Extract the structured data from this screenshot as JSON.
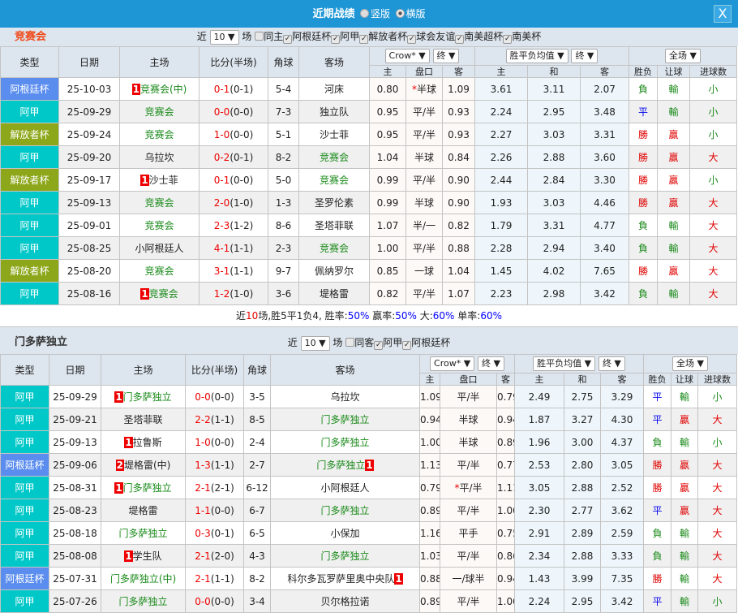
{
  "window": {
    "title": "近期战绩",
    "view_vertical": "竖版",
    "view_horizontal": "横版",
    "close": "X"
  },
  "colors": {
    "阿根廷杯": "#5b8def",
    "阿甲": "#00c8c8",
    "解放者杯": "#8ca81a",
    "win": "#e00000",
    "draw": "#0000ee",
    "loss": "#1a8a1a",
    "title_bar": "#1e96d6"
  },
  "labels": {
    "recent": "近",
    "games": "场",
    "h_type": "类型",
    "h_date": "日期",
    "h_home": "主场",
    "h_score": "比分(半场)",
    "h_corner": "角球",
    "h_away": "客场",
    "h_main": "主",
    "h_line": "盘口",
    "h_away_odds": "客",
    "h_draw": "和",
    "h_wl": "胜负",
    "h_ah": "让球",
    "h_ou": "进球数",
    "company": "Crow*",
    "final": "终",
    "euro": "胜平负均值",
    "period": "全场"
  },
  "team1": {
    "name": "竞赛会",
    "count": "10",
    "same": "同主",
    "filters": [
      "阿根廷杯",
      "阿甲",
      "解放者杯",
      "球会友谊",
      "南美超杯",
      "南美杯"
    ],
    "summary": {
      "p1": "近",
      "n": "10",
      "p2": "场,胜5平1负4, 胜率:",
      "win": "50%",
      "p3": " 赢率:",
      "ah": "50%",
      "p4": " 大:",
      "big": "60%",
      "p5": " 单率:",
      "odd": "60%"
    },
    "rows": [
      {
        "type": "阿根廷杯",
        "date": "25-10-03",
        "home": {
          "name": "竞赛会(中)",
          "hl": true,
          "card": "1"
        },
        "score": "0-1",
        "ht": "(0-1)",
        "corner": "5-4",
        "away": {
          "name": "河床"
        },
        "o": [
          "0.80",
          "半球",
          "1.09"
        ],
        "star": true,
        "e": [
          "3.61",
          "3.11",
          "2.07"
        ],
        "wl": "負",
        "ah": "輸",
        "ou": "小"
      },
      {
        "type": "阿甲",
        "date": "25-09-29",
        "home": {
          "name": "竞赛会",
          "hl": true
        },
        "score": "0-0",
        "ht": "(0-0)",
        "corner": "7-3",
        "away": {
          "name": "独立队"
        },
        "o": [
          "0.95",
          "平/半",
          "0.93"
        ],
        "e": [
          "2.24",
          "2.95",
          "3.48"
        ],
        "wl": "平",
        "ah": "輸",
        "ou": "小"
      },
      {
        "type": "解放者杯",
        "date": "25-09-24",
        "home": {
          "name": "竞赛会",
          "hl": true
        },
        "score": "1-0",
        "ht": "(0-0)",
        "corner": "5-1",
        "away": {
          "name": "沙士菲"
        },
        "o": [
          "0.95",
          "平/半",
          "0.93"
        ],
        "e": [
          "2.27",
          "3.03",
          "3.31"
        ],
        "wl": "勝",
        "ah": "贏",
        "ou": "小"
      },
      {
        "type": "阿甲",
        "date": "25-09-20",
        "home": {
          "name": "乌拉坎"
        },
        "score": "0-2",
        "ht": "(0-1)",
        "corner": "8-2",
        "away": {
          "name": "竞赛会",
          "hl": true
        },
        "o": [
          "1.04",
          "半球",
          "0.84"
        ],
        "e": [
          "2.26",
          "2.88",
          "3.60"
        ],
        "wl": "勝",
        "ah": "贏",
        "ou": "大"
      },
      {
        "type": "解放者杯",
        "date": "25-09-17",
        "home": {
          "name": "沙士菲",
          "card": "1"
        },
        "score": "0-1",
        "ht": "(0-0)",
        "corner": "5-0",
        "away": {
          "name": "竞赛会",
          "hl": true
        },
        "o": [
          "0.99",
          "平/半",
          "0.90"
        ],
        "e": [
          "2.44",
          "2.84",
          "3.30"
        ],
        "wl": "勝",
        "ah": "贏",
        "ou": "小"
      },
      {
        "type": "阿甲",
        "date": "25-09-13",
        "home": {
          "name": "竞赛会",
          "hl": true
        },
        "score": "2-0",
        "ht": "(1-0)",
        "corner": "1-3",
        "away": {
          "name": "圣罗伦素"
        },
        "o": [
          "0.99",
          "半球",
          "0.90"
        ],
        "e": [
          "1.93",
          "3.03",
          "4.46"
        ],
        "wl": "勝",
        "ah": "贏",
        "ou": "大"
      },
      {
        "type": "阿甲",
        "date": "25-09-01",
        "home": {
          "name": "竞赛会",
          "hl": true
        },
        "score": "2-3",
        "ht": "(1-2)",
        "corner": "8-6",
        "away": {
          "name": "圣塔菲联"
        },
        "o": [
          "1.07",
          "半/一",
          "0.82"
        ],
        "e": [
          "1.79",
          "3.31",
          "4.77"
        ],
        "wl": "負",
        "ah": "輸",
        "ou": "大"
      },
      {
        "type": "阿甲",
        "date": "25-08-25",
        "home": {
          "name": "小阿根廷人"
        },
        "score": "4-1",
        "ht": "(1-1)",
        "corner": "2-3",
        "away": {
          "name": "竞赛会",
          "hl": true
        },
        "o": [
          "1.00",
          "平/半",
          "0.88"
        ],
        "e": [
          "2.28",
          "2.94",
          "3.40"
        ],
        "wl": "負",
        "ah": "輸",
        "ou": "大"
      },
      {
        "type": "解放者杯",
        "date": "25-08-20",
        "home": {
          "name": "竞赛会",
          "hl": true
        },
        "score": "3-1",
        "ht": "(1-1)",
        "corner": "9-7",
        "away": {
          "name": "佩纳罗尔"
        },
        "o": [
          "0.85",
          "一球",
          "1.04"
        ],
        "e": [
          "1.45",
          "4.02",
          "7.65"
        ],
        "wl": "勝",
        "ah": "贏",
        "ou": "大"
      },
      {
        "type": "阿甲",
        "date": "25-08-16",
        "home": {
          "name": "竞赛会",
          "hl": true,
          "card": "1"
        },
        "score": "1-2",
        "ht": "(1-0)",
        "corner": "3-6",
        "away": {
          "name": "堤格雷"
        },
        "o": [
          "0.82",
          "平/半",
          "1.07"
        ],
        "e": [
          "2.23",
          "2.98",
          "3.42"
        ],
        "wl": "負",
        "ah": "輸",
        "ou": "大"
      }
    ]
  },
  "team2": {
    "name": "门多萨独立",
    "count": "10",
    "same": "同客",
    "filters": [
      "阿甲",
      "阿根廷杯"
    ],
    "rows": [
      {
        "type": "阿甲",
        "date": "25-09-29",
        "home": {
          "name": "门多萨独立",
          "hl": true,
          "card": "1"
        },
        "score": "0-0",
        "ht": "(0-0)",
        "corner": "3-5",
        "away": {
          "name": "乌拉坎"
        },
        "o": [
          "1.09",
          "平/半",
          "0.79"
        ],
        "e": [
          "2.49",
          "2.75",
          "3.29"
        ],
        "wl": "平",
        "ah": "輸",
        "ou": "小"
      },
      {
        "type": "阿甲",
        "date": "25-09-21",
        "home": {
          "name": "圣塔菲联"
        },
        "score": "2-2",
        "ht": "(1-1)",
        "corner": "8-5",
        "away": {
          "name": "门多萨独立",
          "hl": true
        },
        "o": [
          "0.94",
          "半球",
          "0.94"
        ],
        "e": [
          "1.87",
          "3.27",
          "4.30"
        ],
        "wl": "平",
        "ah": "贏",
        "ou": "大"
      },
      {
        "type": "阿甲",
        "date": "25-09-13",
        "home": {
          "name": "拉鲁斯",
          "card": "1"
        },
        "score": "1-0",
        "ht": "(0-0)",
        "corner": "2-4",
        "away": {
          "name": "门多萨独立",
          "hl": true
        },
        "o": [
          "1.00",
          "半球",
          "0.89"
        ],
        "e": [
          "1.96",
          "3.00",
          "4.37"
        ],
        "wl": "負",
        "ah": "輸",
        "ou": "小"
      },
      {
        "type": "阿根廷杯",
        "date": "25-09-06",
        "home": {
          "name": "堤格雷(中)",
          "card": "2"
        },
        "score": "1-3",
        "ht": "(1-1)",
        "corner": "2-7",
        "away": {
          "name": "门多萨独立",
          "hl": true,
          "card_after": "1"
        },
        "o": [
          "1.13",
          "平/半",
          "0.77"
        ],
        "e": [
          "2.53",
          "2.80",
          "3.05"
        ],
        "wl": "勝",
        "ah": "贏",
        "ou": "大"
      },
      {
        "type": "阿甲",
        "date": "25-08-31",
        "home": {
          "name": "门多萨独立",
          "hl": true,
          "card": "1"
        },
        "score": "2-1",
        "ht": "(2-1)",
        "corner": "6-12",
        "away": {
          "name": "小阿根廷人"
        },
        "o": [
          "0.79",
          "平/半",
          "1.11"
        ],
        "star": true,
        "e": [
          "3.05",
          "2.88",
          "2.52"
        ],
        "wl": "勝",
        "ah": "贏",
        "ou": "大"
      },
      {
        "type": "阿甲",
        "date": "25-08-23",
        "home": {
          "name": "堤格雷"
        },
        "score": "1-1",
        "ht": "(0-0)",
        "corner": "6-7",
        "away": {
          "name": "门多萨独立",
          "hl": true
        },
        "o": [
          "0.89",
          "平/半",
          "1.00"
        ],
        "e": [
          "2.30",
          "2.77",
          "3.62"
        ],
        "wl": "平",
        "ah": "贏",
        "ou": "大"
      },
      {
        "type": "阿甲",
        "date": "25-08-18",
        "home": {
          "name": "门多萨独立",
          "hl": true
        },
        "score": "0-3",
        "ht": "(0-1)",
        "corner": "6-5",
        "away": {
          "name": "小保加"
        },
        "o": [
          "1.16",
          "平手",
          "0.75"
        ],
        "e": [
          "2.91",
          "2.89",
          "2.59"
        ],
        "wl": "負",
        "ah": "輸",
        "ou": "大"
      },
      {
        "type": "阿甲",
        "date": "25-08-08",
        "home": {
          "name": "学生队",
          "card": "1"
        },
        "score": "2-1",
        "ht": "(2-0)",
        "corner": "4-3",
        "away": {
          "name": "门多萨独立",
          "hl": true
        },
        "o": [
          "1.03",
          "平/半",
          "0.86"
        ],
        "e": [
          "2.34",
          "2.88",
          "3.33"
        ],
        "wl": "負",
        "ah": "輸",
        "ou": "大"
      },
      {
        "type": "阿根廷杯",
        "date": "25-07-31",
        "home": {
          "name": "门多萨独立(中)",
          "hl": true
        },
        "score": "2-1",
        "ht": "(1-1)",
        "corner": "8-2",
        "away": {
          "name": "科尔多瓦罗萨里奥中央队",
          "card_after": "1"
        },
        "o": [
          "0.88",
          "一/球半",
          "0.94"
        ],
        "e": [
          "1.43",
          "3.99",
          "7.35"
        ],
        "wl": "勝",
        "ah": "輸",
        "ou": "大"
      },
      {
        "type": "阿甲",
        "date": "25-07-26",
        "home": {
          "name": "门多萨独立",
          "hl": true
        },
        "score": "0-0",
        "ht": "(0-0)",
        "corner": "3-4",
        "away": {
          "name": "贝尔格拉诺"
        },
        "o": [
          "0.89",
          "平/半",
          "1.00"
        ],
        "e": [
          "2.24",
          "2.95",
          "3.42"
        ],
        "wl": "平",
        "ah": "輸",
        "ou": "小"
      }
    ]
  }
}
